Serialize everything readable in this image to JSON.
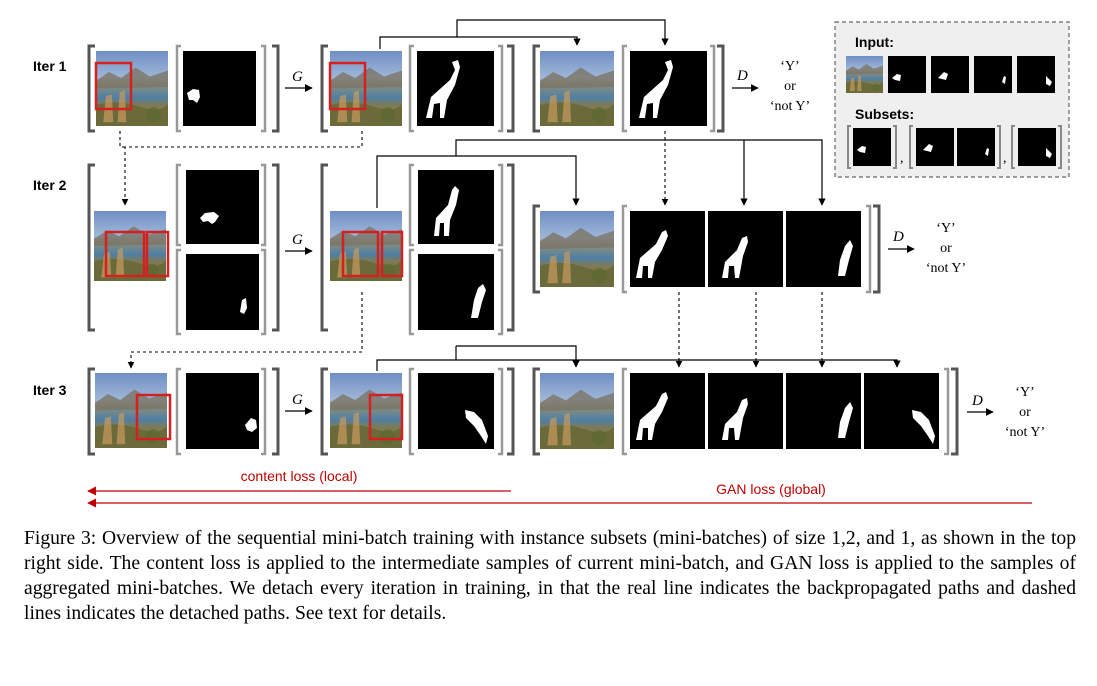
{
  "figure": {
    "rows": [
      {
        "label": "Iter 1",
        "generator_label": "G",
        "discriminator_label": "D",
        "outputs": [
          "‘Y’",
          "or",
          "‘not Y’"
        ]
      },
      {
        "label": "Iter 2",
        "generator_label": "G",
        "discriminator_label": "D",
        "outputs": [
          "‘Y’",
          "or",
          "‘not Y’"
        ]
      },
      {
        "label": "Iter 3",
        "generator_label": "G",
        "discriminator_label": "D",
        "outputs": [
          "‘Y’",
          "or",
          "‘not Y’"
        ]
      }
    ],
    "inset": {
      "input_label": "Input:",
      "subsets_label": "Subsets:",
      "separator": ","
    },
    "content_loss_label": "content loss (local)",
    "gan_loss_label": "GAN loss (global)",
    "colors": {
      "loss_arrow": "#c00000",
      "bbox": "#d42020",
      "mask_bg": "#000000",
      "mask_fg": "#ffffff",
      "inset_bg": "#efefef",
      "bracket": "#555555"
    }
  },
  "caption": "Figure 3: Overview of the sequential mini-batch training with instance subsets (mini-batches) of size 1,2, and 1, as shown in the top right side. The content loss is applied to the intermediate samples of current mini-batch, and GAN loss is applied to the samples of aggregated mini-batches. We detach every iteration in training, in that the real line indicates the backpropagated paths and dashed lines indicates the detached paths. See text for details."
}
